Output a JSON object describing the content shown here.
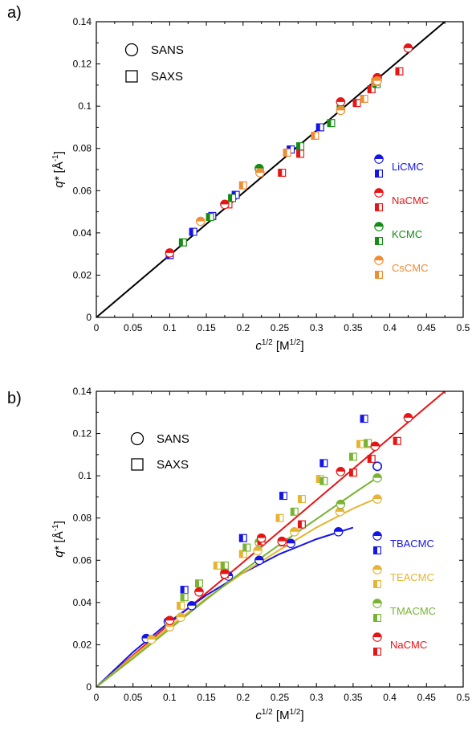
{
  "chart_data": [
    {
      "panel_label": "a)",
      "type": "scatter",
      "xlabel": "c",
      "xlabel_sup": "1/2",
      "xlabel_unit": " [M",
      "xlabel_unit_sup": "1/2",
      "xlabel_close": "]",
      "ylabel": "q*",
      "ylabel_unit": " [Å",
      "ylabel_unit_sup": "-1",
      "ylabel_close": "]",
      "xlim": [
        0,
        0.5
      ],
      "ylim": [
        0,
        0.14
      ],
      "xticks": [
        "0",
        "0.05",
        "0.1",
        "0.15",
        "0.2",
        "0.25",
        "0.3",
        "0.35",
        "0.4",
        "0.45",
        "0.5"
      ],
      "yticks": [
        "0",
        "0.02",
        "0.04",
        "0.06",
        "0.08",
        "0.1",
        "0.12",
        "0.14"
      ],
      "marker_legend": [
        {
          "marker": "circle",
          "label": "SANS"
        },
        {
          "marker": "square",
          "label": "SAXS"
        }
      ],
      "fit_lines": [
        {
          "color": "#000000",
          "x": [
            0,
            0.475
          ],
          "y": [
            0,
            0.14
          ]
        }
      ],
      "series": [
        {
          "name": "LiCMC",
          "color": "#1414e6",
          "sans": {
            "x": [],
            "y": []
          },
          "saxs": {
            "x": [
              0.1,
              0.132,
              0.158,
              0.19,
              0.265,
              0.305
            ],
            "y": [
              0.0295,
              0.0405,
              0.048,
              0.058,
              0.0795,
              0.09
            ]
          }
        },
        {
          "name": "NaCMC",
          "color": "#e61414",
          "sans": {
            "x": [
              0.1,
              0.175,
              0.333,
              0.383,
              0.425
            ],
            "y": [
              0.0305,
              0.0535,
              0.102,
              0.1135,
              0.1275
            ]
          },
          "saxs": {
            "x": [
              0.18,
              0.253,
              0.278,
              0.355,
              0.375,
              0.413
            ],
            "y": [
              0.0535,
              0.0685,
              0.0775,
              0.1015,
              0.108,
              0.1165
            ]
          }
        },
        {
          "name": "KCMC",
          "color": "#148c14",
          "sans": {
            "x": [
              0.222
            ],
            "y": [
              0.0705
            ]
          },
          "saxs": {
            "x": [
              0.118,
              0.155,
              0.185,
              0.278,
              0.32,
              0.333,
              0.382
            ],
            "y": [
              0.0355,
              0.0475,
              0.0565,
              0.081,
              0.092,
              0.0985,
              0.1105
            ]
          }
        },
        {
          "name": "CsCMC",
          "color": "#f08c32",
          "sans": {
            "x": [
              0.142,
              0.223,
              0.333,
              0.383
            ],
            "y": [
              0.0455,
              0.0685,
              0.098,
              0.112
            ]
          },
          "saxs": {
            "x": [
              0.2,
              0.26,
              0.298,
              0.365,
              0.38
            ],
            "y": [
              0.0625,
              0.078,
              0.086,
              0.1035,
              0.1115
            ]
          }
        }
      ]
    },
    {
      "panel_label": "b)",
      "type": "scatter",
      "xlabel": "c",
      "xlabel_sup": "1/2",
      "xlabel_unit": " [M",
      "xlabel_unit_sup": "1/2",
      "xlabel_close": "]",
      "ylabel": "q*",
      "ylabel_unit": " [Å",
      "ylabel_unit_sup": "-1",
      "ylabel_close": "]",
      "xlim": [
        0,
        0.5
      ],
      "ylim": [
        0,
        0.14
      ],
      "xticks": [
        "0",
        "0.05",
        "0.1",
        "0.15",
        "0.2",
        "0.25",
        "0.3",
        "0.35",
        "0.4",
        "0.45",
        "0.5"
      ],
      "yticks": [
        "0",
        "0.02",
        "0.04",
        "0.06",
        "0.08",
        "0.1",
        "0.12",
        "0.14"
      ],
      "marker_legend": [
        {
          "marker": "circle",
          "label": "SANS"
        },
        {
          "marker": "square",
          "label": "SAXS"
        }
      ],
      "fit_lines": [
        {
          "color": "#e61414",
          "x": [
            0,
            0.05,
            0.1,
            0.2,
            0.3,
            0.4,
            0.475
          ],
          "y": [
            0,
            0.015,
            0.03,
            0.059,
            0.0885,
            0.118,
            0.14
          ]
        },
        {
          "color": "#1414e6",
          "x": [
            0,
            0.05,
            0.1,
            0.15,
            0.2,
            0.25,
            0.3,
            0.35
          ],
          "y": [
            0,
            0.0165,
            0.031,
            0.0435,
            0.054,
            0.063,
            0.07,
            0.0755
          ]
        },
        {
          "color": "#e6b432",
          "x": [
            0,
            0.05,
            0.1,
            0.15,
            0.2,
            0.25,
            0.3,
            0.35,
            0.38
          ],
          "y": [
            0,
            0.0145,
            0.0285,
            0.042,
            0.054,
            0.065,
            0.0755,
            0.0845,
            0.089
          ]
        },
        {
          "color": "#78b432",
          "x": [
            0,
            0.05,
            0.1,
            0.15,
            0.2,
            0.25,
            0.3,
            0.35,
            0.38
          ],
          "y": [
            0,
            0.0135,
            0.0275,
            0.0415,
            0.055,
            0.0675,
            0.0795,
            0.0915,
            0.0985
          ]
        }
      ],
      "series": [
        {
          "name": "TBACMC",
          "color": "#1414e6",
          "sans": {
            "x": [
              0.068,
              0.098,
              0.13,
              0.18,
              0.222,
              0.265,
              0.33
            ],
            "y": [
              0.023,
              0.031,
              0.0385,
              0.0525,
              0.06,
              0.068,
              0.0735
            ]
          },
          "saxs": {
            "x": [
              0.12,
              0.2,
              0.255,
              0.31,
              0.365
            ],
            "y": [
              0.046,
              0.0705,
              0.0905,
              0.106,
              0.127
            ]
          }
        },
        {
          "name": "TEACMC",
          "color": "#e6b432",
          "sans": {
            "x": [
              0.075,
              0.1,
              0.115,
              0.175,
              0.22,
              0.27,
              0.332,
              0.383
            ],
            "y": [
              0.0225,
              0.0285,
              0.033,
              0.054,
              0.0645,
              0.0735,
              0.083,
              0.089
            ]
          },
          "saxs": {
            "x": [
              0.115,
              0.165,
              0.2,
              0.25,
              0.28,
              0.305,
              0.36,
              0.37
            ],
            "y": [
              0.0385,
              0.0575,
              0.063,
              0.08,
              0.089,
              0.0985,
              0.115,
              0.115
            ]
          }
        },
        {
          "name": "TMACMC",
          "color": "#78b432",
          "sans": {
            "x": [
              0.175,
              0.222,
              0.333,
              0.383
            ],
            "y": [
              0.054,
              0.0685,
              0.0865,
              0.099
            ]
          },
          "saxs": {
            "x": [
              0.12,
              0.14,
              0.175,
              0.205,
              0.27,
              0.31,
              0.35,
              0.37
            ],
            "y": [
              0.0425,
              0.049,
              0.0575,
              0.066,
              0.083,
              0.0975,
              0.109,
              0.1155
            ]
          }
        },
        {
          "name": "NaCMC",
          "color": "#e61414",
          "sans": {
            "x": [
              0.1,
              0.14,
              0.175,
              0.225,
              0.253,
              0.333,
              0.38,
              0.425
            ],
            "y": [
              0.0315,
              0.045,
              0.0535,
              0.0705,
              0.069,
              0.102,
              0.114,
              0.1275
            ]
          },
          "saxs": {
            "x": [
              0.175,
              0.225,
              0.255,
              0.28,
              0.35,
              0.375,
              0.41
            ],
            "y": [
              0.0535,
              0.069,
              0.0685,
              0.077,
              0.1015,
              0.108,
              0.1165
            ]
          }
        },
        {
          "name": "",
          "color": "#1414e6",
          "hollow": true,
          "sans": {
            "x": [
              0.383
            ],
            "y": [
              0.1045
            ]
          },
          "saxs": {
            "x": [],
            "y": []
          }
        }
      ]
    }
  ]
}
